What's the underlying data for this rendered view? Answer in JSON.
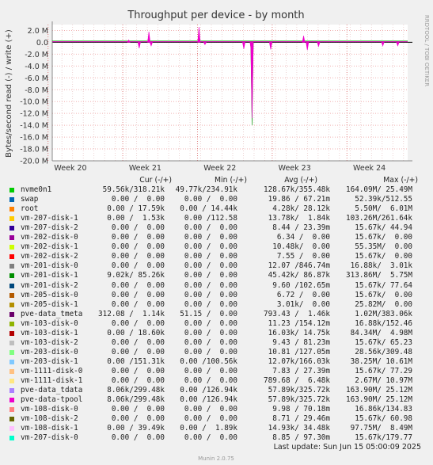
{
  "chart_data": {
    "type": "line",
    "title": "Throughput per device - by month",
    "ylabel": "Bytes/second read (-) / write (+)",
    "side_label": "RRDTOOL / TOBI OETIKER",
    "footer": "Munin 2.0.75",
    "last_update": "Last update: Sun Jun 15 05:00:09 2025",
    "ylim": [
      -20.0,
      3.0
    ],
    "y_ticks": [
      "2.0 M",
      "0.0",
      "-2.0 M",
      "-4.0 M",
      "-6.0 M",
      "-8.0 M",
      "-10.0 M",
      "-12.0 M",
      "-14.0 M",
      "-16.0 M",
      "-18.0 M",
      "-20.0 M"
    ],
    "x_ticks": [
      "Week 20",
      "Week 21",
      "Week 22",
      "Week 23",
      "Week 24"
    ],
    "columns": [
      "Cur (-/+)",
      "Min (-/+)",
      "Avg (-/+)",
      "Max (-/+)"
    ],
    "series": [
      {
        "name": "nvme0n1",
        "color": "#00cc00",
        "cur": "59.56k/318.21k",
        "min": "49.77k/234.91k",
        "avg": "128.67k/355.48k",
        "max": "164.09M/ 25.49M"
      },
      {
        "name": "swap",
        "color": "#0066b3",
        "cur": "0.00 /  0.00",
        "min": "0.00 /  0.00",
        "avg": "19.86 / 67.21m",
        "max": "52.39k/512.55"
      },
      {
        "name": "root",
        "color": "#ff8000",
        "cur": "0.00 / 17.59k",
        "min": "0.00 / 14.44k",
        "avg": "4.28k/ 28.12k",
        "max": "5.50M/  6.01M"
      },
      {
        "name": "vm-207-disk-1",
        "color": "#ffcc00",
        "cur": "0.00 /  1.53k",
        "min": "0.00 /112.58",
        "avg": "13.78k/  1.84k",
        "max": "103.26M/261.64k"
      },
      {
        "name": "vm-207-disk-2",
        "color": "#330099",
        "cur": "0.00 /  0.00",
        "min": "0.00 /  0.00",
        "avg": "8.44 / 23.39m",
        "max": "15.67k/ 44.94"
      },
      {
        "name": "vm-202-disk-0",
        "color": "#990099",
        "cur": "0.00 /  0.00",
        "min": "0.00 /  0.00",
        "avg": "6.34 /  0.00",
        "max": "15.67k/  0.00"
      },
      {
        "name": "vm-202-disk-1",
        "color": "#ccff00",
        "cur": "0.00 /  0.00",
        "min": "0.00 /  0.00",
        "avg": "10.48k/  0.00",
        "max": "55.35M/  0.00"
      },
      {
        "name": "vm-202-disk-2",
        "color": "#ff0000",
        "cur": "0.00 /  0.00",
        "min": "0.00 /  0.00",
        "avg": "7.55 /  0.00",
        "max": "15.67k/  0.00"
      },
      {
        "name": "vm-201-disk-0",
        "color": "#808080",
        "cur": "0.00 /  0.00",
        "min": "0.00 /  0.00",
        "avg": "12.07 /846.74m",
        "max": "16.88k/  3.01k"
      },
      {
        "name": "vm-201-disk-1",
        "color": "#008f00",
        "cur": "9.02k/ 85.26k",
        "min": "0.00 /  0.00",
        "avg": "45.42k/ 86.87k",
        "max": "313.86M/  5.75M"
      },
      {
        "name": "vm-201-disk-2",
        "color": "#00487d",
        "cur": "0.00 /  0.00",
        "min": "0.00 /  0.00",
        "avg": "9.60 /102.65m",
        "max": "15.67k/ 77.64"
      },
      {
        "name": "vm-205-disk-0",
        "color": "#b35a00",
        "cur": "0.00 /  0.00",
        "min": "0.00 /  0.00",
        "avg": "6.72 /  0.00",
        "max": "15.67k/  0.00"
      },
      {
        "name": "vm-205-disk-1",
        "color": "#b38f00",
        "cur": "0.00 /  0.00",
        "min": "0.00 /  0.00",
        "avg": "3.01k/  0.00",
        "max": "25.82M/  0.00"
      },
      {
        "name": "pve-data_tmeta",
        "color": "#6b006b",
        "cur": "312.08 /  1.14k",
        "min": "51.15 /  0.00",
        "avg": "793.43 /  1.46k",
        "max": "1.02M/383.06k"
      },
      {
        "name": "vm-103-disk-0",
        "color": "#8fb300",
        "cur": "0.00 /  0.00",
        "min": "0.00 /  0.00",
        "avg": "11.23 /154.12m",
        "max": "16.88k/152.46"
      },
      {
        "name": "vm-103-disk-1",
        "color": "#b30000",
        "cur": "0.00 / 18.60k",
        "min": "0.00 /  0.00",
        "avg": "16.03k/ 14.75k",
        "max": "84.34M/  4.98M"
      },
      {
        "name": "vm-103-disk-2",
        "color": "#bebebe",
        "cur": "0.00 /  0.00",
        "min": "0.00 /  0.00",
        "avg": "9.43 / 81.23m",
        "max": "15.67k/ 65.23"
      },
      {
        "name": "vm-203-disk-0",
        "color": "#80ff80",
        "cur": "0.00 /  0.00",
        "min": "0.00 /  0.00",
        "avg": "10.81 /127.05m",
        "max": "28.56k/309.48"
      },
      {
        "name": "vm-203-disk-1",
        "color": "#80c9ff",
        "cur": "0.00 /151.31k",
        "min": "0.00 /100.56k",
        "avg": "12.07k/166.03k",
        "max": "38.25M/ 10.61M"
      },
      {
        "name": "vm-1111-disk-0",
        "color": "#ffc080",
        "cur": "0.00 /  0.00",
        "min": "0.00 /  0.00",
        "avg": "7.83 / 27.39m",
        "max": "15.67k/ 77.29"
      },
      {
        "name": "vm-1111-disk-1",
        "color": "#ffe680",
        "cur": "0.00 /  0.00",
        "min": "0.00 /  0.00",
        "avg": "789.68 /  6.48k",
        "max": "2.67M/ 10.97M"
      },
      {
        "name": "pve-data_tdata",
        "color": "#aa80ff",
        "cur": "8.06k/299.48k",
        "min": "0.00 /126.94k",
        "avg": "57.89k/325.72k",
        "max": "163.90M/ 25.12M"
      },
      {
        "name": "pve-data-tpool",
        "color": "#ee00cc",
        "cur": "8.06k/299.48k",
        "min": "0.00 /126.94k",
        "avg": "57.89k/325.72k",
        "max": "163.90M/ 25.12M"
      },
      {
        "name": "vm-108-disk-0",
        "color": "#ff8080",
        "cur": "0.00 /  0.00",
        "min": "0.00 /  0.00",
        "avg": "9.98 / 70.18m",
        "max": "16.86k/134.83"
      },
      {
        "name": "vm-108-disk-2",
        "color": "#666600",
        "cur": "0.00 /  0.00",
        "min": "0.00 /  0.00",
        "avg": "8.71 / 29.46m",
        "max": "15.67k/ 60.98"
      },
      {
        "name": "vm-108-disk-1",
        "color": "#ffbfff",
        "cur": "0.00 / 39.49k",
        "min": "0.00 /  1.89k",
        "avg": "14.93k/ 34.48k",
        "max": "97.75M/  8.49M"
      },
      {
        "name": "vm-207-disk-0",
        "color": "#00ffcc",
        "cur": "0.00 /  0.00",
        "min": "0.00 /  0.00",
        "avg": "8.85 / 97.30m",
        "max": "15.67k/179.77"
      }
    ],
    "spikes": [
      {
        "series": "pve-data-tpool",
        "week": 20.78,
        "value": 0.4
      },
      {
        "series": "pve-data-tpool",
        "week": 20.92,
        "value": -1.0
      },
      {
        "series": "pve-data-tpool",
        "week": 21.05,
        "value": 1.8
      },
      {
        "series": "pve-data-tpool",
        "week": 21.08,
        "value": -0.6
      },
      {
        "series": "pve-data-tpool",
        "week": 21.72,
        "value": 2.6
      },
      {
        "series": "pve-data-tpool",
        "week": 21.8,
        "value": -0.4
      },
      {
        "series": "pve-data-tpool",
        "week": 22.32,
        "value": -1.1
      },
      {
        "series": "pve-data-tpool",
        "week": 22.42,
        "value": -1.5
      },
      {
        "series": "vm-201-disk-1",
        "week": 22.43,
        "value": -14.0
      },
      {
        "series": "pve-data-tpool",
        "week": 22.43,
        "value": -12.8
      },
      {
        "series": "pve-data-tpool",
        "week": 22.68,
        "value": -1.2
      },
      {
        "series": "pve-data-tpool",
        "week": 23.12,
        "value": 1.1
      },
      {
        "series": "pve-data-tpool",
        "week": 23.17,
        "value": -1.3
      },
      {
        "series": "pve-data-tpool",
        "week": 23.32,
        "value": -0.7
      },
      {
        "series": "pve-data-tpool",
        "week": 24.18,
        "value": -0.6
      },
      {
        "series": "pve-data-tpool",
        "week": 24.38,
        "value": -0.6
      }
    ]
  }
}
